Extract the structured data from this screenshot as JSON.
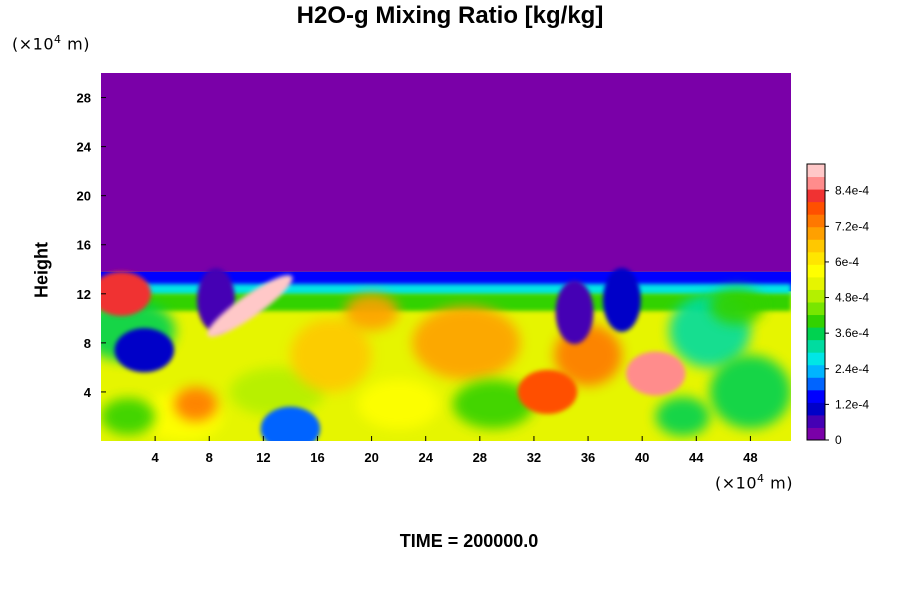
{
  "chart_data": {
    "type": "heatmap",
    "title": "H2O-g Mixing Ratio [kg/kg]",
    "ylabel": "Height",
    "x_unit": "m",
    "y_unit": "m",
    "unit_exponent": "4",
    "xlim": [
      0,
      51
    ],
    "ylim": [
      0,
      30
    ],
    "x_ticks": [
      4,
      8,
      12,
      16,
      20,
      24,
      28,
      32,
      36,
      40,
      44,
      48
    ],
    "y_ticks": [
      4,
      8,
      12,
      16,
      20,
      24,
      28
    ],
    "colorbar": {
      "range": [
        0,
        0.00093
      ],
      "ticks": [
        {
          "value": 0,
          "label": "0"
        },
        {
          "value": 0.00012,
          "label": "1.2e-4"
        },
        {
          "value": 0.00024,
          "label": "2.4e-4"
        },
        {
          "value": 0.00036,
          "label": "3.6e-4"
        },
        {
          "value": 0.00048,
          "label": "4.8e-4"
        },
        {
          "value": 0.0006,
          "label": "6e-4"
        },
        {
          "value": 0.00072,
          "label": "7.2e-4"
        },
        {
          "value": 0.00084,
          "label": "8.4e-4"
        }
      ],
      "colors": [
        "#7a00a8",
        "#4400b4",
        "#0000c8",
        "#0000ff",
        "#0064ff",
        "#00b4ff",
        "#00e6e6",
        "#00dca0",
        "#00d250",
        "#32d200",
        "#78e600",
        "#b4f000",
        "#e6f500",
        "#ffff00",
        "#ffe600",
        "#ffc800",
        "#ffa000",
        "#ff7800",
        "#ff5000",
        "#f03232",
        "#ff8c8c",
        "#ffc8c8"
      ]
    },
    "field_description_points": {
      "background_above_top_kg_per_kg": 0,
      "top_of_moist_layer_y": 13.8,
      "features": [
        {
          "kind": "dry-eddy",
          "x": 3.2,
          "y": 7.4,
          "value": 0.0001
        },
        {
          "kind": "dry-intrusion",
          "x": 8.5,
          "y": 11.5,
          "value": 8e-05
        },
        {
          "kind": "moist-filament",
          "x": 11,
          "y": 11,
          "value": 0.00092
        },
        {
          "kind": "moist-blob",
          "x": 1.5,
          "y": 12,
          "value": 0.00082
        },
        {
          "kind": "moist-blob",
          "x": 33,
          "y": 4,
          "value": 0.0008
        },
        {
          "kind": "moist-blob",
          "x": 41,
          "y": 5.5,
          "value": 0.00088
        },
        {
          "kind": "dry-intrusion",
          "x": 35,
          "y": 10.5,
          "value": 5e-05
        },
        {
          "kind": "dry-intrusion",
          "x": 38.5,
          "y": 11.5,
          "value": 0.0001
        },
        {
          "kind": "dry-eddy",
          "x": 14,
          "y": 1,
          "value": 0.0002
        }
      ]
    }
  },
  "footer": {
    "time_label": "TIME = 200000.0"
  },
  "units_text": {
    "prefix": "(×10",
    "suffix": " m)"
  }
}
